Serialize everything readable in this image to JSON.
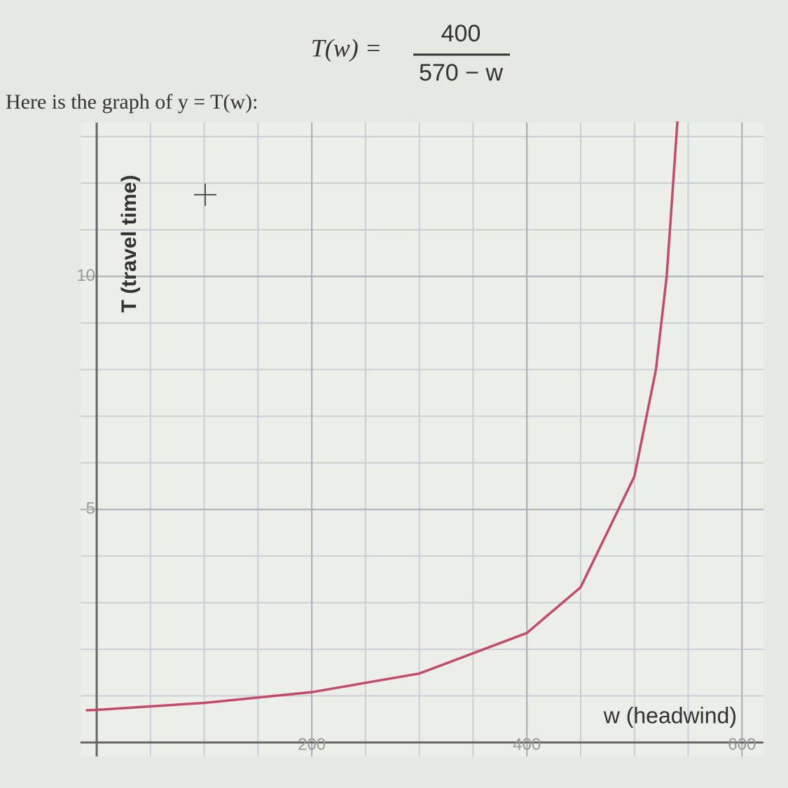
{
  "chart_data": {
    "type": "line",
    "formula_left": "T(w) =",
    "formula_numerator": "400",
    "formula_denominator": "570 − w",
    "subtitle": "Here is the graph of y = T(w):",
    "x_label": "w (headwind)",
    "y_label": "T (travel time)",
    "x": [
      -10,
      0,
      100,
      200,
      300,
      400,
      450,
      500,
      520,
      530,
      540
    ],
    "series": [
      {
        "color": "#c44a6a",
        "values": [
          0.69,
          0.7,
          0.85,
          1.08,
          1.48,
          2.35,
          3.33,
          5.71,
          8.0,
          10.0,
          13.33
        ]
      }
    ],
    "xlim": [
      -15,
      620
    ],
    "ylim": [
      -0.3,
      13.3
    ],
    "xticks": [
      200,
      400,
      600
    ],
    "yticks": [
      5,
      10
    ],
    "grid": true
  }
}
